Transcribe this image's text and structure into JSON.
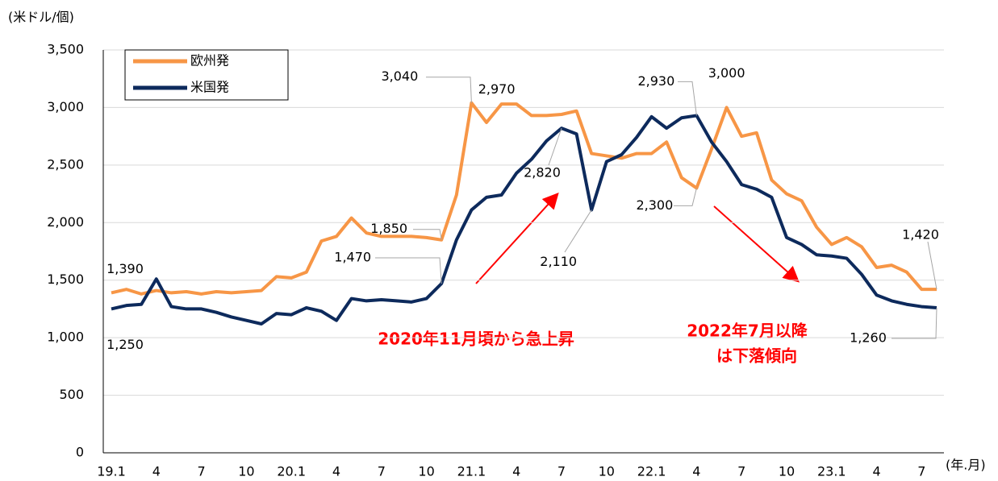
{
  "chart_data": {
    "type": "line",
    "y_unit": "(米ドル/個)",
    "x_unit": "(年.月)",
    "categories": [
      "19.1",
      null,
      null,
      "4",
      null,
      null,
      "7",
      null,
      null,
      "10",
      null,
      null,
      "20.1",
      null,
      null,
      "4",
      null,
      null,
      "7",
      null,
      null,
      "10",
      null,
      null,
      "21.1",
      null,
      null,
      "4",
      null,
      null,
      "7",
      null,
      null,
      "10",
      null,
      null,
      "22.1",
      null,
      null,
      "4",
      null,
      null,
      "7",
      null,
      null,
      "10",
      null,
      null,
      "23.1",
      null,
      null,
      "4",
      null,
      null,
      "7",
      null
    ],
    "series": [
      {
        "name": "欧州発",
        "color": "#f79646",
        "values": [
          1390,
          1420,
          1380,
          1410,
          1390,
          1400,
          1380,
          1400,
          1390,
          1400,
          1410,
          1530,
          1520,
          1570,
          1840,
          1880,
          2040,
          1910,
          1880,
          1880,
          1880,
          1870,
          1850,
          2240,
          3040,
          2870,
          3030,
          3030,
          2930,
          2930,
          2940,
          2970,
          2600,
          2580,
          2560,
          2600,
          2600,
          2700,
          2390,
          2300,
          2640,
          3000,
          2750,
          2780,
          2370,
          2250,
          2190,
          1960,
          1810,
          1870,
          1790,
          1610,
          1630,
          1570,
          1420,
          1420
        ],
        "value_labels": [
          "1,390",
          null,
          null,
          null,
          null,
          null,
          null,
          null,
          null,
          null,
          null,
          null,
          null,
          null,
          null,
          null,
          null,
          null,
          null,
          null,
          null,
          null,
          "1,850",
          null,
          "3,040",
          null,
          null,
          null,
          null,
          null,
          null,
          "2,970",
          null,
          null,
          null,
          null,
          null,
          null,
          null,
          "2,300",
          null,
          "3,000",
          null,
          null,
          null,
          null,
          null,
          null,
          null,
          null,
          null,
          null,
          null,
          null,
          null,
          "1,420"
        ]
      },
      {
        "name": "米国発",
        "color": "#0d2a5c",
        "values": [
          1250,
          1280,
          1290,
          1510,
          1270,
          1250,
          1250,
          1220,
          1180,
          1150,
          1120,
          1210,
          1200,
          1260,
          1230,
          1150,
          1340,
          1320,
          1330,
          1320,
          1310,
          1340,
          1470,
          1850,
          2110,
          2220,
          2240,
          2430,
          2550,
          2710,
          2820,
          2770,
          2110,
          2530,
          2590,
          2740,
          2920,
          2820,
          2910,
          2930,
          2700,
          2530,
          2330,
          2290,
          2220,
          1870,
          1810,
          1720,
          1710,
          1690,
          1550,
          1370,
          1320,
          1290,
          1270,
          1260
        ],
        "value_labels": [
          "1,250",
          null,
          null,
          null,
          null,
          null,
          null,
          null,
          null,
          null,
          null,
          null,
          null,
          null,
          null,
          null,
          null,
          null,
          null,
          null,
          null,
          null,
          "1,470",
          null,
          null,
          null,
          null,
          null,
          null,
          null,
          "2,820",
          null,
          "2,110",
          null,
          null,
          null,
          null,
          null,
          null,
          "2,930",
          null,
          null,
          null,
          null,
          null,
          null,
          null,
          null,
          null,
          null,
          null,
          null,
          null,
          null,
          null,
          "1,260"
        ]
      }
    ],
    "ylim": [
      0,
      3500
    ],
    "yticks": [
      0,
      500,
      {
        "value": 1000,
        "label": "1,000"
      },
      {
        "value": 1500,
        "label": "1,500"
      },
      {
        "value": 2000,
        "label": "2,000"
      },
      {
        "value": 2500,
        "label": "2,500"
      },
      {
        "value": 3000,
        "label": "3,000"
      },
      {
        "value": 3500,
        "label": "3,500"
      }
    ],
    "grid": true,
    "legend": "upper left",
    "annotations": [
      "2020年11月頃から急上昇",
      "2022年7月以降",
      "は下落傾向"
    ]
  }
}
